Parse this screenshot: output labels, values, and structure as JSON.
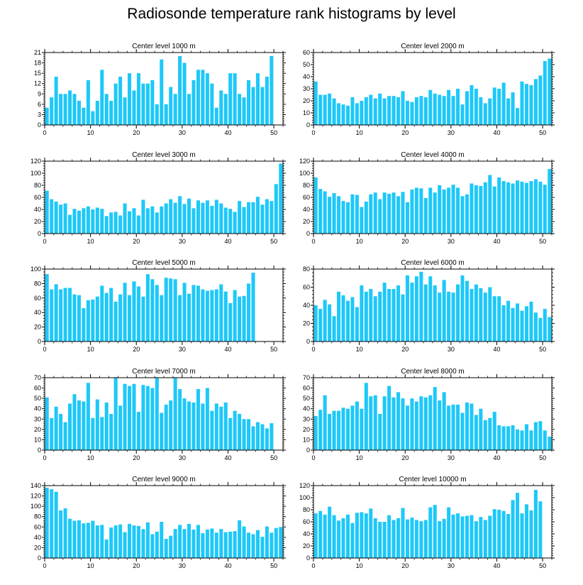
{
  "title": "Radiosonde temperature rank histograms by level",
  "bar_color": "#1ec8f8",
  "chart_data": [
    {
      "type": "bar",
      "title": "Center level 1000 m",
      "xlabel": "",
      "ylabel": "",
      "xlim": [
        0,
        52
      ],
      "xticks": [
        0,
        10,
        20,
        30,
        40,
        50
      ],
      "ylim": [
        0,
        21
      ],
      "yticks": [
        0,
        3,
        6,
        9,
        12,
        15,
        18,
        21
      ],
      "x": [
        0,
        1,
        2,
        3,
        4,
        5,
        6,
        7,
        8,
        9,
        10,
        11,
        12,
        13,
        14,
        15,
        16,
        17,
        18,
        19,
        20,
        21,
        22,
        23,
        24,
        25,
        26,
        27,
        28,
        29,
        30,
        31,
        32,
        33,
        34,
        35,
        36,
        37,
        38,
        39,
        40,
        41,
        42,
        43,
        44,
        45,
        46,
        47,
        48,
        49,
        50,
        51
      ],
      "values": [
        5,
        8,
        14,
        9,
        9,
        10,
        9,
        7,
        5,
        13,
        4,
        7,
        16,
        9,
        7,
        12,
        14,
        8,
        15,
        10,
        15,
        12,
        12,
        13,
        6,
        19,
        6,
        11,
        9,
        20,
        18,
        9,
        13,
        16,
        16,
        15,
        12,
        5,
        10,
        9,
        15,
        15,
        9,
        8,
        13,
        11,
        15,
        11,
        14,
        20,
        0,
        0
      ]
    },
    {
      "type": "bar",
      "title": "Center level 2000 m",
      "xlabel": "",
      "ylabel": "",
      "xlim": [
        0,
        52
      ],
      "xticks": [
        0,
        10,
        20,
        30,
        40,
        50
      ],
      "ylim": [
        0,
        60
      ],
      "yticks": [
        0,
        10,
        20,
        30,
        40,
        50,
        60
      ],
      "x": [
        0,
        1,
        2,
        3,
        4,
        5,
        6,
        7,
        8,
        9,
        10,
        11,
        12,
        13,
        14,
        15,
        16,
        17,
        18,
        19,
        20,
        21,
        22,
        23,
        24,
        25,
        26,
        27,
        28,
        29,
        30,
        31,
        32,
        33,
        34,
        35,
        36,
        37,
        38,
        39,
        40,
        41,
        42,
        43,
        44,
        45,
        46,
        47,
        48,
        49,
        50,
        51
      ],
      "values": [
        36,
        25,
        25,
        26,
        22,
        18,
        17,
        16,
        23,
        18,
        20,
        23,
        25,
        22,
        26,
        22,
        24,
        24,
        23,
        28,
        20,
        19,
        23,
        24,
        23,
        29,
        26,
        25,
        24,
        29,
        24,
        30,
        17,
        28,
        33,
        30,
        23,
        18,
        22,
        31,
        30,
        35,
        22,
        27,
        14,
        36,
        34,
        33,
        38,
        41,
        53,
        55
      ]
    },
    {
      "type": "bar",
      "title": "Center level 3000 m",
      "xlabel": "",
      "ylabel": "",
      "xlim": [
        0,
        52
      ],
      "xticks": [
        0,
        10,
        20,
        30,
        40,
        50
      ],
      "ylim": [
        0,
        120
      ],
      "yticks": [
        0,
        20,
        40,
        60,
        80,
        100,
        120
      ],
      "x": [
        0,
        1,
        2,
        3,
        4,
        5,
        6,
        7,
        8,
        9,
        10,
        11,
        12,
        13,
        14,
        15,
        16,
        17,
        18,
        19,
        20,
        21,
        22,
        23,
        24,
        25,
        26,
        27,
        28,
        29,
        30,
        31,
        32,
        33,
        34,
        35,
        36,
        37,
        38,
        39,
        40,
        41,
        42,
        43,
        44,
        45,
        46,
        47,
        48,
        49,
        50,
        51
      ],
      "values": [
        71,
        57,
        53,
        48,
        50,
        31,
        41,
        38,
        42,
        45,
        40,
        43,
        41,
        29,
        35,
        36,
        30,
        50,
        37,
        42,
        30,
        56,
        42,
        45,
        35,
        45,
        50,
        57,
        51,
        62,
        49,
        58,
        42,
        55,
        51,
        55,
        46,
        56,
        50,
        43,
        41,
        36,
        54,
        44,
        52,
        52,
        61,
        48,
        57,
        54,
        82,
        116
      ]
    },
    {
      "type": "bar",
      "title": "Center level 4000 m",
      "xlabel": "",
      "ylabel": "",
      "xlim": [
        0,
        52
      ],
      "xticks": [
        0,
        10,
        20,
        30,
        40,
        50
      ],
      "ylim": [
        0,
        120
      ],
      "yticks": [
        0,
        20,
        40,
        60,
        80,
        100,
        120
      ],
      "x": [
        0,
        1,
        2,
        3,
        4,
        5,
        6,
        7,
        8,
        9,
        10,
        11,
        12,
        13,
        14,
        15,
        16,
        17,
        18,
        19,
        20,
        21,
        22,
        23,
        24,
        25,
        26,
        27,
        28,
        29,
        30,
        31,
        32,
        33,
        34,
        35,
        36,
        37,
        38,
        39,
        40,
        41,
        42,
        43,
        44,
        45,
        46,
        47,
        48,
        49,
        50,
        51
      ],
      "values": [
        93,
        74,
        70,
        61,
        67,
        62,
        54,
        52,
        65,
        64,
        44,
        53,
        65,
        68,
        57,
        68,
        66,
        68,
        62,
        69,
        52,
        73,
        76,
        75,
        59,
        76,
        68,
        80,
        73,
        76,
        81,
        76,
        62,
        65,
        83,
        80,
        79,
        85,
        97,
        78,
        93,
        87,
        85,
        83,
        88,
        86,
        84,
        87,
        90,
        86,
        81,
        107
      ]
    },
    {
      "type": "bar",
      "title": "Center level 5000 m",
      "xlabel": "",
      "ylabel": "",
      "xlim": [
        0,
        52
      ],
      "xticks": [
        0,
        10,
        20,
        30,
        40,
        50
      ],
      "ylim": [
        0,
        100
      ],
      "yticks": [
        0,
        20,
        40,
        60,
        80,
        100
      ],
      "x": [
        0,
        1,
        2,
        3,
        4,
        5,
        6,
        7,
        8,
        9,
        10,
        11,
        12,
        13,
        14,
        15,
        16,
        17,
        18,
        19,
        20,
        21,
        22,
        23,
        24,
        25,
        26,
        27,
        28,
        29,
        30,
        31,
        32,
        33,
        34,
        35,
        36,
        37,
        38,
        39,
        40,
        41,
        42,
        43,
        44,
        45,
        46,
        47,
        48,
        49,
        50,
        51
      ],
      "values": [
        93,
        72,
        79,
        72,
        74,
        74,
        65,
        64,
        46,
        57,
        58,
        62,
        77,
        67,
        74,
        55,
        65,
        81,
        64,
        83,
        76,
        62,
        93,
        86,
        78,
        64,
        88,
        87,
        86,
        64,
        81,
        66,
        78,
        77,
        72,
        70,
        71,
        72,
        79,
        69,
        53,
        71,
        62,
        63,
        80,
        95,
        0,
        0,
        0,
        0,
        0,
        0
      ]
    },
    {
      "type": "bar",
      "title": "Center level 6000 m",
      "xlabel": "",
      "ylabel": "",
      "xlim": [
        0,
        52
      ],
      "xticks": [
        0,
        10,
        20,
        30,
        40,
        50
      ],
      "ylim": [
        0,
        80
      ],
      "yticks": [
        0,
        20,
        40,
        60,
        80
      ],
      "x": [
        0,
        1,
        2,
        3,
        4,
        5,
        6,
        7,
        8,
        9,
        10,
        11,
        12,
        13,
        14,
        15,
        16,
        17,
        18,
        19,
        20,
        21,
        22,
        23,
        24,
        25,
        26,
        27,
        28,
        29,
        30,
        31,
        32,
        33,
        34,
        35,
        36,
        37,
        38,
        39,
        40,
        41,
        42,
        43,
        44,
        45,
        46,
        47,
        48,
        49,
        50,
        51
      ],
      "values": [
        40,
        36,
        46,
        41,
        28,
        55,
        51,
        45,
        49,
        38,
        62,
        55,
        58,
        50,
        55,
        65,
        58,
        58,
        62,
        52,
        73,
        65,
        72,
        77,
        63,
        72,
        62,
        54,
        68,
        55,
        54,
        63,
        73,
        67,
        58,
        63,
        59,
        54,
        60,
        50,
        50,
        40,
        45,
        37,
        42,
        34,
        39,
        44,
        32,
        26,
        36,
        27
      ]
    },
    {
      "type": "bar",
      "title": "Center level 7000 m",
      "xlabel": "",
      "ylabel": "",
      "xlim": [
        0,
        52
      ],
      "xticks": [
        0,
        10,
        20,
        30,
        40,
        50
      ],
      "ylim": [
        0,
        70
      ],
      "yticks": [
        0,
        10,
        20,
        30,
        40,
        50,
        60,
        70
      ],
      "x": [
        0,
        1,
        2,
        3,
        4,
        5,
        6,
        7,
        8,
        9,
        10,
        11,
        12,
        13,
        14,
        15,
        16,
        17,
        18,
        19,
        20,
        21,
        22,
        23,
        24,
        25,
        26,
        27,
        28,
        29,
        30,
        31,
        32,
        33,
        34,
        35,
        36,
        37,
        38,
        39,
        40,
        41,
        42,
        43,
        44,
        45,
        46,
        47,
        48,
        49,
        50,
        51
      ],
      "values": [
        51,
        31,
        42,
        35,
        27,
        45,
        54,
        48,
        47,
        65,
        31,
        49,
        32,
        46,
        35,
        70,
        43,
        64,
        62,
        64,
        37,
        63,
        62,
        60,
        70,
        36,
        44,
        48,
        70,
        59,
        50,
        47,
        46,
        59,
        45,
        60,
        38,
        45,
        42,
        46,
        31,
        38,
        35,
        30,
        30,
        23,
        27,
        25,
        21,
        26,
        0,
        0
      ]
    },
    {
      "type": "bar",
      "title": "Center level 8000 m",
      "xlabel": "",
      "ylabel": "",
      "xlim": [
        0,
        52
      ],
      "xticks": [
        0,
        10,
        20,
        30,
        40,
        50
      ],
      "ylim": [
        0,
        70
      ],
      "yticks": [
        0,
        10,
        20,
        30,
        40,
        50,
        60,
        70
      ],
      "x": [
        0,
        1,
        2,
        3,
        4,
        5,
        6,
        7,
        8,
        9,
        10,
        11,
        12,
        13,
        14,
        15,
        16,
        17,
        18,
        19,
        20,
        21,
        22,
        23,
        24,
        25,
        26,
        27,
        28,
        29,
        30,
        31,
        32,
        33,
        34,
        35,
        36,
        37,
        38,
        39,
        40,
        41,
        42,
        43,
        44,
        45,
        46,
        47,
        48,
        49,
        50,
        51
      ],
      "values": [
        33,
        39,
        53,
        35,
        38,
        38,
        41,
        40,
        43,
        47,
        40,
        65,
        52,
        53,
        35,
        52,
        62,
        51,
        56,
        50,
        43,
        50,
        47,
        52,
        51,
        53,
        61,
        48,
        56,
        43,
        44,
        44,
        36,
        46,
        45,
        34,
        40,
        29,
        31,
        37,
        24,
        23,
        23,
        24,
        20,
        19,
        25,
        19,
        27,
        28,
        19,
        13
      ]
    },
    {
      "type": "bar",
      "title": "Center level 9000 m",
      "xlabel": "",
      "ylabel": "",
      "xlim": [
        0,
        52
      ],
      "xticks": [
        0,
        10,
        20,
        30,
        40,
        50
      ],
      "ylim": [
        0,
        140
      ],
      "yticks": [
        0,
        20,
        40,
        60,
        80,
        100,
        120,
        140
      ],
      "x": [
        0,
        1,
        2,
        3,
        4,
        5,
        6,
        7,
        8,
        9,
        10,
        11,
        12,
        13,
        14,
        15,
        16,
        17,
        18,
        19,
        20,
        21,
        22,
        23,
        24,
        25,
        26,
        27,
        28,
        29,
        30,
        31,
        32,
        33,
        34,
        35,
        36,
        37,
        38,
        39,
        40,
        41,
        42,
        43,
        44,
        45,
        46,
        47,
        48,
        49,
        50,
        51
      ],
      "values": [
        136,
        133,
        128,
        92,
        96,
        76,
        72,
        73,
        67,
        68,
        72,
        63,
        64,
        36,
        59,
        63,
        65,
        50,
        66,
        63,
        62,
        56,
        69,
        46,
        51,
        70,
        37,
        43,
        56,
        64,
        56,
        66,
        55,
        64,
        48,
        55,
        57,
        49,
        56,
        50,
        51,
        52,
        73,
        61,
        49,
        46,
        54,
        41,
        61,
        49,
        58,
        60
      ]
    },
    {
      "type": "bar",
      "title": "Center level 10000 m",
      "xlabel": "",
      "ylabel": "",
      "xlim": [
        0,
        52
      ],
      "xticks": [
        0,
        10,
        20,
        30,
        40,
        50
      ],
      "ylim": [
        0,
        120
      ],
      "yticks": [
        0,
        20,
        40,
        60,
        80,
        100,
        120
      ],
      "x": [
        0,
        1,
        2,
        3,
        4,
        5,
        6,
        7,
        8,
        9,
        10,
        11,
        12,
        13,
        14,
        15,
        16,
        17,
        18,
        19,
        20,
        21,
        22,
        23,
        24,
        25,
        26,
        27,
        28,
        29,
        30,
        31,
        32,
        33,
        34,
        35,
        36,
        37,
        38,
        39,
        40,
        41,
        42,
        43,
        44,
        45,
        46,
        47,
        48,
        49,
        50,
        51
      ],
      "values": [
        74,
        78,
        72,
        85,
        71,
        62,
        66,
        72,
        58,
        75,
        76,
        74,
        82,
        66,
        60,
        60,
        71,
        63,
        66,
        83,
        64,
        67,
        63,
        61,
        63,
        84,
        88,
        61,
        65,
        84,
        72,
        74,
        69,
        70,
        71,
        61,
        68,
        63,
        70,
        81,
        80,
        78,
        73,
        96,
        108,
        74,
        89,
        79,
        113,
        94,
        0,
        0
      ]
    }
  ]
}
